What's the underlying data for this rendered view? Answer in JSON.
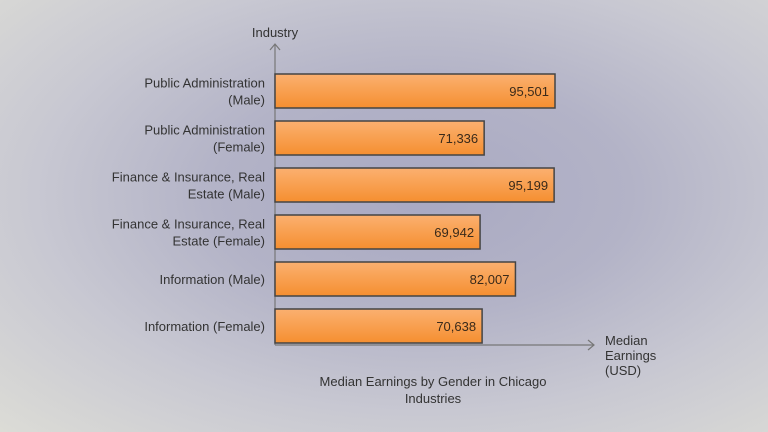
{
  "chart_data": {
    "type": "bar",
    "orientation": "horizontal",
    "title": "Median Earnings by Gender in Chicago Industries",
    "xlabel": "Median Earnings (USD)",
    "ylabel": "Industry",
    "categories": [
      "Public Administration (Male)",
      "Public Administration (Female)",
      "Finance & Insurance, Real Estate (Male)",
      "Finance & Insurance, Real Estate (Female)",
      "Information (Male)",
      "Information (Female)"
    ],
    "category_lines": [
      [
        "Public Administration",
        "(Male)"
      ],
      [
        "Public Administration",
        "(Female)"
      ],
      [
        "Finance & Insurance, Real",
        "Estate (Male)"
      ],
      [
        "Finance & Insurance, Real",
        "Estate (Female)"
      ],
      [
        "Information (Male)"
      ],
      [
        "Information (Female)"
      ]
    ],
    "values": [
      95501,
      71336,
      95199,
      69942,
      82007,
      70638
    ],
    "value_labels": [
      "95,501",
      "71,336",
      "95,199",
      "69,942",
      "82,007",
      "70,638"
    ],
    "title_lines": [
      "Median Earnings by Gender in Chicago",
      "Industries"
    ],
    "xlabel_lines": [
      "Median",
      "Earnings",
      "(USD)"
    ],
    "bar_color": "#f99a45",
    "bar_border_color": "#444444",
    "grid": false
  }
}
